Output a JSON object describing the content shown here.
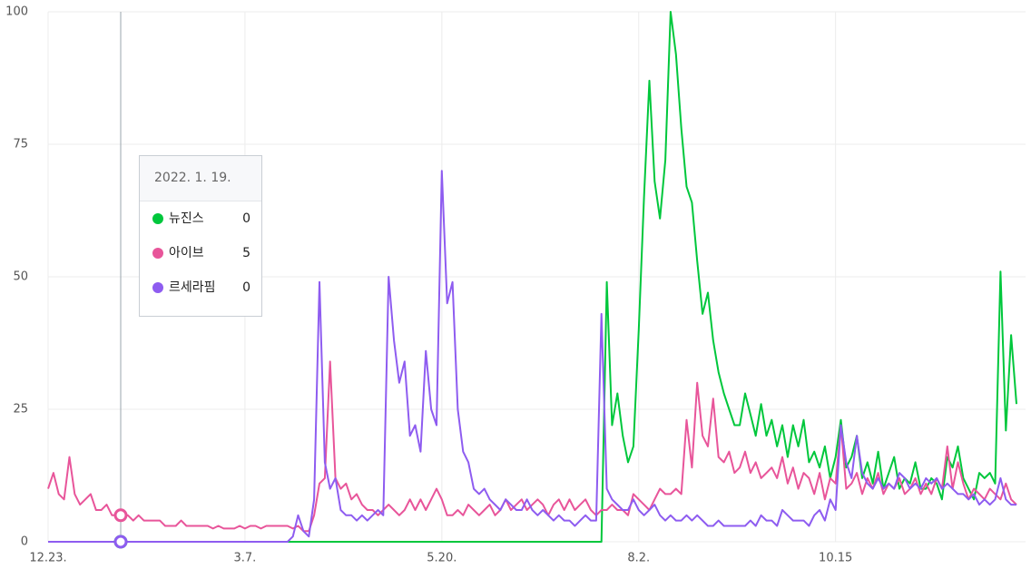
{
  "chart_data": {
    "type": "line",
    "ylim": [
      0,
      100
    ],
    "yticks": [
      0,
      25,
      50,
      75,
      100
    ],
    "grid": true,
    "categories": [
      "12.23.",
      null,
      null,
      null,
      null,
      null,
      null,
      null,
      null,
      null,
      null,
      null,
      null,
      null,
      null,
      null,
      null,
      null,
      null,
      null,
      null,
      null,
      null,
      null,
      null,
      null,
      null,
      null,
      null,
      null,
      null,
      null,
      null,
      null,
      null,
      null,
      null,
      "3.7.",
      null,
      null,
      null,
      null,
      null,
      null,
      null,
      null,
      null,
      null,
      null,
      null,
      null,
      null,
      null,
      null,
      null,
      null,
      null,
      null,
      null,
      null,
      null,
      null,
      null,
      null,
      null,
      null,
      null,
      null,
      null,
      null,
      null,
      null,
      null,
      null,
      "5.20.",
      null,
      null,
      null,
      null,
      null,
      null,
      null,
      null,
      null,
      null,
      null,
      null,
      null,
      null,
      null,
      null,
      null,
      null,
      null,
      null,
      null,
      null,
      null,
      null,
      null,
      null,
      null,
      null,
      null,
      null,
      null,
      null,
      null,
      null,
      null,
      null,
      "8.2.",
      null,
      null,
      null,
      null,
      null,
      null,
      null,
      null,
      null,
      null,
      null,
      null,
      null,
      null,
      null,
      null,
      null,
      null,
      null,
      null,
      null,
      null,
      null,
      null,
      null,
      null,
      null,
      null,
      null,
      null,
      null,
      null,
      null,
      null,
      null,
      null,
      "10.15",
      null,
      null,
      null,
      null,
      null,
      null,
      null,
      null,
      null,
      null,
      null,
      null,
      null,
      null,
      null,
      null,
      null,
      null,
      null,
      null,
      null,
      null,
      null,
      null,
      null,
      null,
      null,
      null,
      null,
      null,
      null,
      null,
      null,
      null
    ],
    "series": [
      {
        "name": "뉴진스",
        "color": "#00c73c",
        "values": [
          0,
          0,
          0,
          0,
          0,
          0,
          0,
          0,
          0,
          0,
          0,
          0,
          0,
          0,
          0,
          0,
          0,
          0,
          0,
          0,
          0,
          0,
          0,
          0,
          0,
          0,
          0,
          0,
          0,
          0,
          0,
          0,
          0,
          0,
          0,
          0,
          0,
          0,
          0,
          0,
          0,
          0,
          0,
          0,
          0,
          0,
          0,
          0,
          0,
          0,
          0,
          0,
          0,
          0,
          0,
          0,
          0,
          0,
          0,
          0,
          0,
          0,
          0,
          0,
          0,
          0,
          0,
          0,
          0,
          0,
          0,
          0,
          0,
          0,
          0,
          0,
          0,
          0,
          0,
          0,
          0,
          0,
          0,
          0,
          0,
          0,
          0,
          0,
          0,
          0,
          0,
          0,
          0,
          0,
          0,
          0,
          0,
          0,
          0,
          0,
          0,
          0,
          0,
          0,
          0,
          49,
          22,
          28,
          20,
          15,
          18,
          40,
          65,
          87,
          68,
          61,
          72,
          100,
          92,
          78,
          67,
          64,
          53,
          43,
          47,
          38,
          32,
          28,
          25,
          22,
          22,
          28,
          24,
          20,
          26,
          20,
          23,
          18,
          22,
          16,
          22,
          18,
          23,
          15,
          17,
          14,
          18,
          12,
          16,
          23,
          14,
          16,
          20,
          12,
          15,
          11,
          17,
          10,
          13,
          16,
          10,
          12,
          11,
          15,
          10,
          10,
          12,
          11,
          8,
          16,
          14,
          18,
          12,
          10,
          8,
          13,
          12,
          13,
          11,
          51,
          21,
          39,
          26
        ]
      },
      {
        "name": "아이브",
        "color": "#e8559a",
        "values": [
          10,
          13,
          9,
          8,
          16,
          9,
          7,
          8,
          9,
          6,
          6,
          7,
          5,
          5,
          5,
          5,
          4,
          5,
          4,
          4,
          4,
          4,
          3,
          3,
          3,
          4,
          3,
          3,
          3,
          3,
          3,
          2.5,
          3,
          2.5,
          2.5,
          2.5,
          3,
          2.5,
          3,
          3,
          2.5,
          3,
          3,
          3,
          3,
          3,
          2.5,
          3,
          2,
          2,
          5,
          11,
          12,
          34,
          12,
          10,
          11,
          8,
          9,
          7,
          6,
          6,
          5,
          6,
          7,
          6,
          5,
          6,
          8,
          6,
          8,
          6,
          8,
          10,
          8,
          5,
          5,
          6,
          5,
          7,
          6,
          5,
          6,
          7,
          5,
          6,
          8,
          6,
          7,
          8,
          6,
          7,
          8,
          7,
          5,
          7,
          8,
          6,
          8,
          6,
          7,
          8,
          6,
          5,
          6,
          6,
          7,
          6,
          6,
          5,
          9,
          8,
          7,
          6,
          8,
          10,
          9,
          9,
          10,
          9,
          23,
          14,
          30,
          20,
          18,
          27,
          16,
          15,
          17,
          13,
          14,
          17,
          13,
          15,
          12,
          13,
          14,
          12,
          16,
          11,
          14,
          10,
          13,
          12,
          9,
          13,
          8,
          12,
          11,
          22,
          10,
          11,
          13,
          9,
          12,
          10,
          13,
          9,
          11,
          10,
          12,
          9,
          10,
          12,
          9,
          11,
          9,
          12,
          10,
          18,
          10,
          15,
          11,
          8,
          10,
          9,
          8,
          10,
          9,
          8,
          11,
          8,
          7
        ]
      },
      {
        "name": "르세라핌",
        "color": "#8e5cf0",
        "values": [
          0,
          0,
          0,
          0,
          0,
          0,
          0,
          0,
          0,
          0,
          0,
          0,
          0,
          0,
          0,
          0,
          0,
          0,
          0,
          0,
          0,
          0,
          0,
          0,
          0,
          0,
          0,
          0,
          0,
          0,
          0,
          0,
          0,
          0,
          0,
          0,
          0,
          0,
          0,
          0,
          0,
          0,
          0,
          0,
          0,
          0,
          1,
          5,
          2,
          1,
          8,
          49,
          15,
          10,
          12,
          6,
          5,
          5,
          4,
          5,
          4,
          5,
          6,
          5,
          50,
          38,
          30,
          34,
          20,
          22,
          17,
          36,
          25,
          22,
          70,
          45,
          49,
          25,
          17,
          15,
          10,
          9,
          10,
          8,
          7,
          6,
          8,
          7,
          6,
          6,
          8,
          6,
          5,
          6,
          5,
          4,
          5,
          4,
          4,
          3,
          4,
          5,
          4,
          4,
          43,
          10,
          8,
          7,
          6,
          6,
          8,
          6,
          5,
          6,
          7,
          5,
          4,
          5,
          4,
          4,
          5,
          4,
          5,
          4,
          3,
          3,
          4,
          3,
          3,
          3,
          3,
          3,
          4,
          3,
          5,
          4,
          4,
          3,
          6,
          5,
          4,
          4,
          4,
          3,
          5,
          6,
          4,
          8,
          6,
          22,
          15,
          12,
          20,
          13,
          11,
          10,
          12,
          10,
          11,
          10,
          13,
          12,
          10,
          11,
          10,
          12,
          11,
          12,
          10,
          11,
          10,
          9,
          9,
          8,
          9,
          7,
          8,
          7,
          8,
          12,
          8,
          7,
          7
        ]
      }
    ],
    "tooltip": {
      "date": "2022. 1. 19.",
      "items": [
        {
          "name": "뉴진스",
          "value": 0
        },
        {
          "name": "아이브",
          "value": 5
        },
        {
          "name": "르세라핌",
          "value": 0
        }
      ]
    }
  }
}
